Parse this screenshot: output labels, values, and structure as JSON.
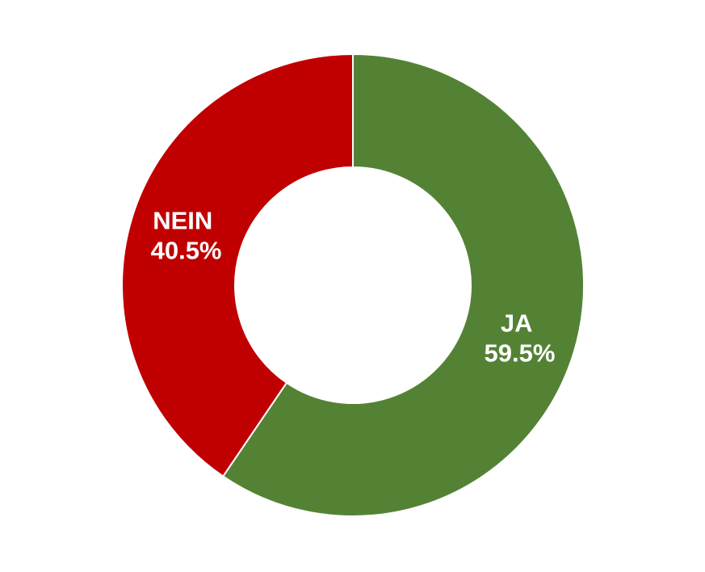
{
  "chart_data": {
    "type": "pie",
    "variant": "donut",
    "title": "",
    "slices": [
      {
        "label": "JA",
        "value": 59.5,
        "value_label": "59.5%",
        "color": "#548235"
      },
      {
        "label": "NEIN",
        "value": 40.5,
        "value_label": "40.5%",
        "color": "#C00000"
      }
    ],
    "start": "12 o'clock",
    "direction": "clockwise",
    "separator_color": "#ffffff",
    "legend": "none"
  }
}
